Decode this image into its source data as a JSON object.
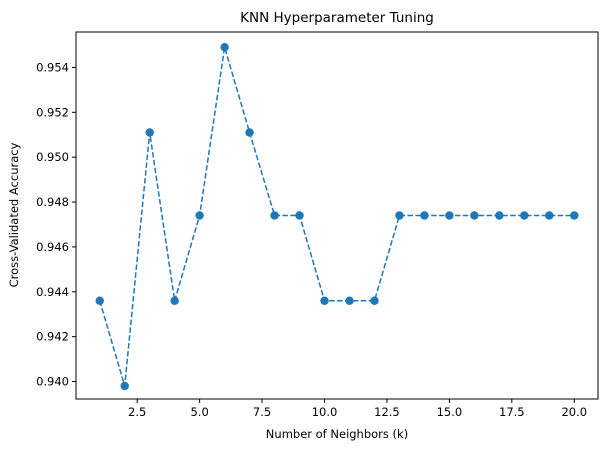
{
  "chart_data": {
    "type": "line",
    "title": "KNN Hyperparameter Tuning",
    "xlabel": "Number of Neighbors (k)",
    "ylabel": "Cross-Validated Accuracy",
    "xlim": [
      0.05,
      20.95
    ],
    "ylim": [
      0.93922,
      0.95558
    ],
    "x_ticks": [
      2.5,
      5.0,
      7.5,
      10.0,
      12.5,
      15.0,
      17.5,
      20.0
    ],
    "x_tick_labels": [
      "2.5",
      "5.0",
      "7.5",
      "10.0",
      "12.5",
      "15.0",
      "17.5",
      "20.0"
    ],
    "y_ticks": [
      0.94,
      0.942,
      0.944,
      0.946,
      0.948,
      0.95,
      0.952,
      0.954
    ],
    "y_tick_labels": [
      "0.940",
      "0.942",
      "0.944",
      "0.946",
      "0.948",
      "0.950",
      "0.952",
      "0.954"
    ],
    "grid": false,
    "line_style": "dashed",
    "marker": "circle",
    "color": "#1f77b4",
    "series": [
      {
        "x": [
          1,
          2,
          3,
          4,
          5,
          6,
          7,
          8,
          9,
          10,
          11,
          12,
          13,
          14,
          15,
          16,
          17,
          18,
          19,
          20
        ],
        "values": [
          0.9436,
          0.9398,
          0.9511,
          0.9436,
          0.9474,
          0.9549,
          0.9511,
          0.9474,
          0.9474,
          0.9436,
          0.9436,
          0.9436,
          0.9474,
          0.9474,
          0.9474,
          0.9474,
          0.9474,
          0.9474,
          0.9474,
          0.9474
        ]
      }
    ]
  }
}
